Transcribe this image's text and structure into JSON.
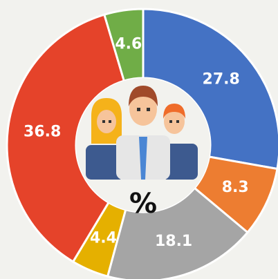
{
  "chart_data": {
    "type": "donut",
    "center_label": "%",
    "categories": [
      null,
      null,
      null,
      null,
      null,
      null
    ],
    "values": [
      27.8,
      8.3,
      18.1,
      4.4,
      36.8,
      4.6
    ],
    "colors": [
      "#4472c4",
      "#ed7d31",
      "#a5a5a5",
      "#e5b000",
      "#e5432a",
      "#70ad47"
    ]
  }
}
